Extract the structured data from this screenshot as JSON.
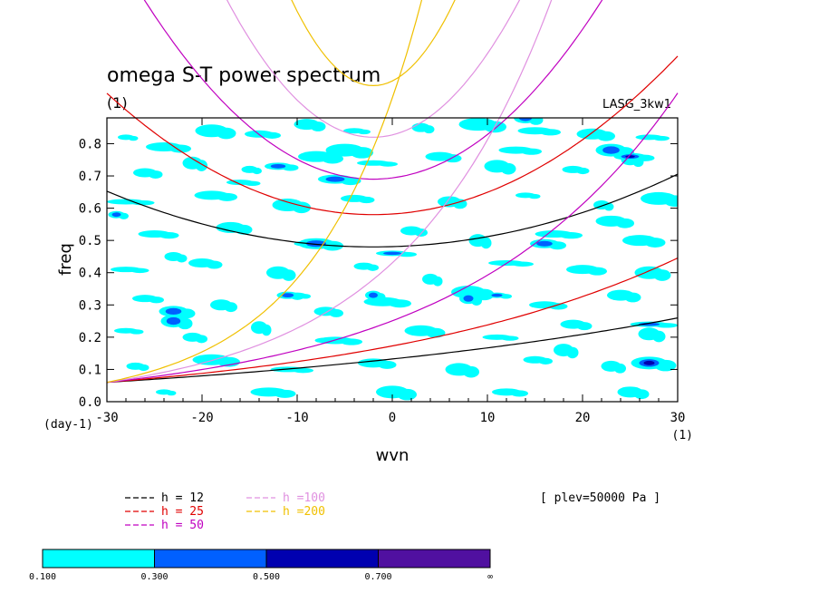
{
  "chart_data": {
    "type": "heatmap",
    "title": "omega S-T power spectrum",
    "subtitle": "(1)",
    "model_label": "LASG_3kw1",
    "xlabel": "wvn",
    "ylabel": "freq",
    "x_unit": "(1)",
    "y_unit": "(day-1)",
    "xlim": [
      -30,
      30
    ],
    "ylim": [
      0.0,
      0.88
    ],
    "x_ticks": [
      "-30",
      "-20",
      "-10",
      "0",
      "10",
      "20",
      "30"
    ],
    "y_ticks": [
      "0.0",
      "0.1",
      "0.2",
      "0.3",
      "0.4",
      "0.5",
      "0.6",
      "0.7",
      "0.8"
    ],
    "plev_note": "[ plev=50000 Pa ]",
    "legend": [
      {
        "label": "h = 12",
        "color": "#000000"
      },
      {
        "label": "h = 25",
        "color": "#e00000"
      },
      {
        "label": "h = 50",
        "color": "#c000c0"
      },
      {
        "label": "h =100",
        "color": "#e090e0"
      },
      {
        "label": "h =200",
        "color": "#f0c000"
      }
    ],
    "colorbar": {
      "levels": [
        "0.100",
        "0.300",
        "0.500",
        "0.700",
        "∞"
      ],
      "colors": [
        "#00ffff",
        "#0060ff",
        "#0000b0",
        "#5010a0"
      ]
    },
    "dispersion_curves": {
      "h_values": [
        12,
        25,
        50,
        100,
        200
      ],
      "colors": [
        "#000000",
        "#e00000",
        "#c000c0",
        "#e090e0",
        "#f0c000"
      ],
      "kelvin_wave": true,
      "poincare_min_freq": [
        0.48,
        0.58,
        0.69,
        0.82,
        0.98
      ]
    },
    "contour_blobs": [
      {
        "x": -28,
        "y": 0.82,
        "lvl": 0
      },
      {
        "x": -24,
        "y": 0.79,
        "lvl": 0
      },
      {
        "x": -19,
        "y": 0.84,
        "lvl": 0
      },
      {
        "x": -14,
        "y": 0.83,
        "lvl": 0
      },
      {
        "x": -9,
        "y": 0.86,
        "lvl": 0
      },
      {
        "x": -4,
        "y": 0.84,
        "lvl": 0
      },
      {
        "x": 3,
        "y": 0.85,
        "lvl": 0
      },
      {
        "x": 9,
        "y": 0.86,
        "lvl": 0
      },
      {
        "x": 15,
        "y": 0.84,
        "lvl": 0
      },
      {
        "x": 21,
        "y": 0.83,
        "lvl": 0
      },
      {
        "x": 27,
        "y": 0.82,
        "lvl": 0
      },
      {
        "x": -26,
        "y": 0.71,
        "lvl": 0
      },
      {
        "x": -21,
        "y": 0.74,
        "lvl": 0
      },
      {
        "x": -15,
        "y": 0.72,
        "lvl": 0
      },
      {
        "x": -8,
        "y": 0.76,
        "lvl": 0
      },
      {
        "x": -2,
        "y": 0.74,
        "lvl": 0
      },
      {
        "x": 5,
        "y": 0.76,
        "lvl": 0
      },
      {
        "x": 11,
        "y": 0.73,
        "lvl": 0
      },
      {
        "x": 19,
        "y": 0.72,
        "lvl": 0
      },
      {
        "x": 25,
        "y": 0.75,
        "lvl": 0
      },
      {
        "x": -28,
        "y": 0.62,
        "lvl": 0
      },
      {
        "x": -19,
        "y": 0.64,
        "lvl": 0
      },
      {
        "x": -11,
        "y": 0.61,
        "lvl": 0
      },
      {
        "x": -4,
        "y": 0.63,
        "lvl": 0
      },
      {
        "x": 6,
        "y": 0.62,
        "lvl": 0
      },
      {
        "x": 14,
        "y": 0.64,
        "lvl": 0
      },
      {
        "x": 22,
        "y": 0.61,
        "lvl": 0
      },
      {
        "x": 28,
        "y": 0.63,
        "lvl": 0
      },
      {
        "x": -25,
        "y": 0.52,
        "lvl": 0
      },
      {
        "x": -17,
        "y": 0.54,
        "lvl": 0
      },
      {
        "x": -9,
        "y": 0.49,
        "lvl": 0
      },
      {
        "x": 2,
        "y": 0.53,
        "lvl": 0
      },
      {
        "x": 9,
        "y": 0.5,
        "lvl": 0
      },
      {
        "x": 17,
        "y": 0.52,
        "lvl": 0
      },
      {
        "x": 26,
        "y": 0.5,
        "lvl": 0
      },
      {
        "x": -28,
        "y": 0.41,
        "lvl": 0
      },
      {
        "x": -20,
        "y": 0.43,
        "lvl": 0
      },
      {
        "x": -12,
        "y": 0.4,
        "lvl": 0
      },
      {
        "x": -3,
        "y": 0.42,
        "lvl": 0
      },
      {
        "x": 4,
        "y": 0.38,
        "lvl": 0
      },
      {
        "x": 12,
        "y": 0.43,
        "lvl": 0
      },
      {
        "x": 20,
        "y": 0.41,
        "lvl": 0
      },
      {
        "x": 27,
        "y": 0.4,
        "lvl": 0
      },
      {
        "x": -26,
        "y": 0.32,
        "lvl": 0
      },
      {
        "x": -18,
        "y": 0.3,
        "lvl": 0
      },
      {
        "x": -10,
        "y": 0.33,
        "lvl": 0
      },
      {
        "x": -1,
        "y": 0.31,
        "lvl": 0
      },
      {
        "x": 8,
        "y": 0.34,
        "lvl": 0
      },
      {
        "x": 16,
        "y": 0.3,
        "lvl": 0
      },
      {
        "x": 24,
        "y": 0.33,
        "lvl": 0
      },
      {
        "x": -28,
        "y": 0.22,
        "lvl": 0
      },
      {
        "x": -21,
        "y": 0.2,
        "lvl": 0
      },
      {
        "x": -14,
        "y": 0.23,
        "lvl": 0
      },
      {
        "x": -6,
        "y": 0.19,
        "lvl": 0
      },
      {
        "x": 3,
        "y": 0.22,
        "lvl": 0
      },
      {
        "x": 11,
        "y": 0.2,
        "lvl": 0
      },
      {
        "x": 19,
        "y": 0.24,
        "lvl": 0
      },
      {
        "x": 27,
        "y": 0.21,
        "lvl": 0
      },
      {
        "x": -27,
        "y": 0.11,
        "lvl": 0
      },
      {
        "x": -19,
        "y": 0.13,
        "lvl": 0
      },
      {
        "x": -11,
        "y": 0.1,
        "lvl": 0
      },
      {
        "x": -2,
        "y": 0.12,
        "lvl": 0
      },
      {
        "x": 7,
        "y": 0.1,
        "lvl": 0
      },
      {
        "x": 15,
        "y": 0.13,
        "lvl": 0
      },
      {
        "x": 23,
        "y": 0.11,
        "lvl": 0
      },
      {
        "x": -24,
        "y": 0.03,
        "lvl": 0
      },
      {
        "x": -13,
        "y": 0.03,
        "lvl": 0
      },
      {
        "x": 0,
        "y": 0.03,
        "lvl": 0
      },
      {
        "x": 12,
        "y": 0.03,
        "lvl": 0
      },
      {
        "x": 25,
        "y": 0.03,
        "lvl": 0
      },
      {
        "x": -7,
        "y": 0.19,
        "lvl": 0
      },
      {
        "x": -23,
        "y": 0.45,
        "lvl": 0
      },
      {
        "x": -5,
        "y": 0.78,
        "lvl": 0
      },
      {
        "x": 13,
        "y": 0.78,
        "lvl": 0
      },
      {
        "x": 23,
        "y": 0.56,
        "lvl": 0
      },
      {
        "x": -16,
        "y": 0.68,
        "lvl": 0
      },
      {
        "x": -7,
        "y": 0.28,
        "lvl": 0
      },
      {
        "x": 18,
        "y": 0.16,
        "lvl": 0
      },
      {
        "x": -29,
        "y": 0.58,
        "lvl": 1
      },
      {
        "x": -8,
        "y": 0.49,
        "lvl": 1
      },
      {
        "x": 0,
        "y": 0.46,
        "lvl": 1
      },
      {
        "x": 16,
        "y": 0.49,
        "lvl": 1
      },
      {
        "x": -23,
        "y": 0.25,
        "lvl": 1
      },
      {
        "x": -11,
        "y": 0.33,
        "lvl": 1
      },
      {
        "x": 8,
        "y": 0.32,
        "lvl": 1
      },
      {
        "x": 27,
        "y": 0.24,
        "lvl": 1
      },
      {
        "x": -6,
        "y": 0.69,
        "lvl": 1
      },
      {
        "x": 23,
        "y": 0.78,
        "lvl": 1
      },
      {
        "x": -12,
        "y": 0.73,
        "lvl": 1
      },
      {
        "x": 14,
        "y": 0.88,
        "lvl": 1
      },
      {
        "x": 11,
        "y": 0.33,
        "lvl": 1
      },
      {
        "x": -2,
        "y": 0.33,
        "lvl": 1
      },
      {
        "x": 27,
        "y": 0.12,
        "lvl": 2
      },
      {
        "x": 25,
        "y": 0.76,
        "lvl": 2
      },
      {
        "x": -23,
        "y": 0.28,
        "lvl": 1
      }
    ]
  }
}
